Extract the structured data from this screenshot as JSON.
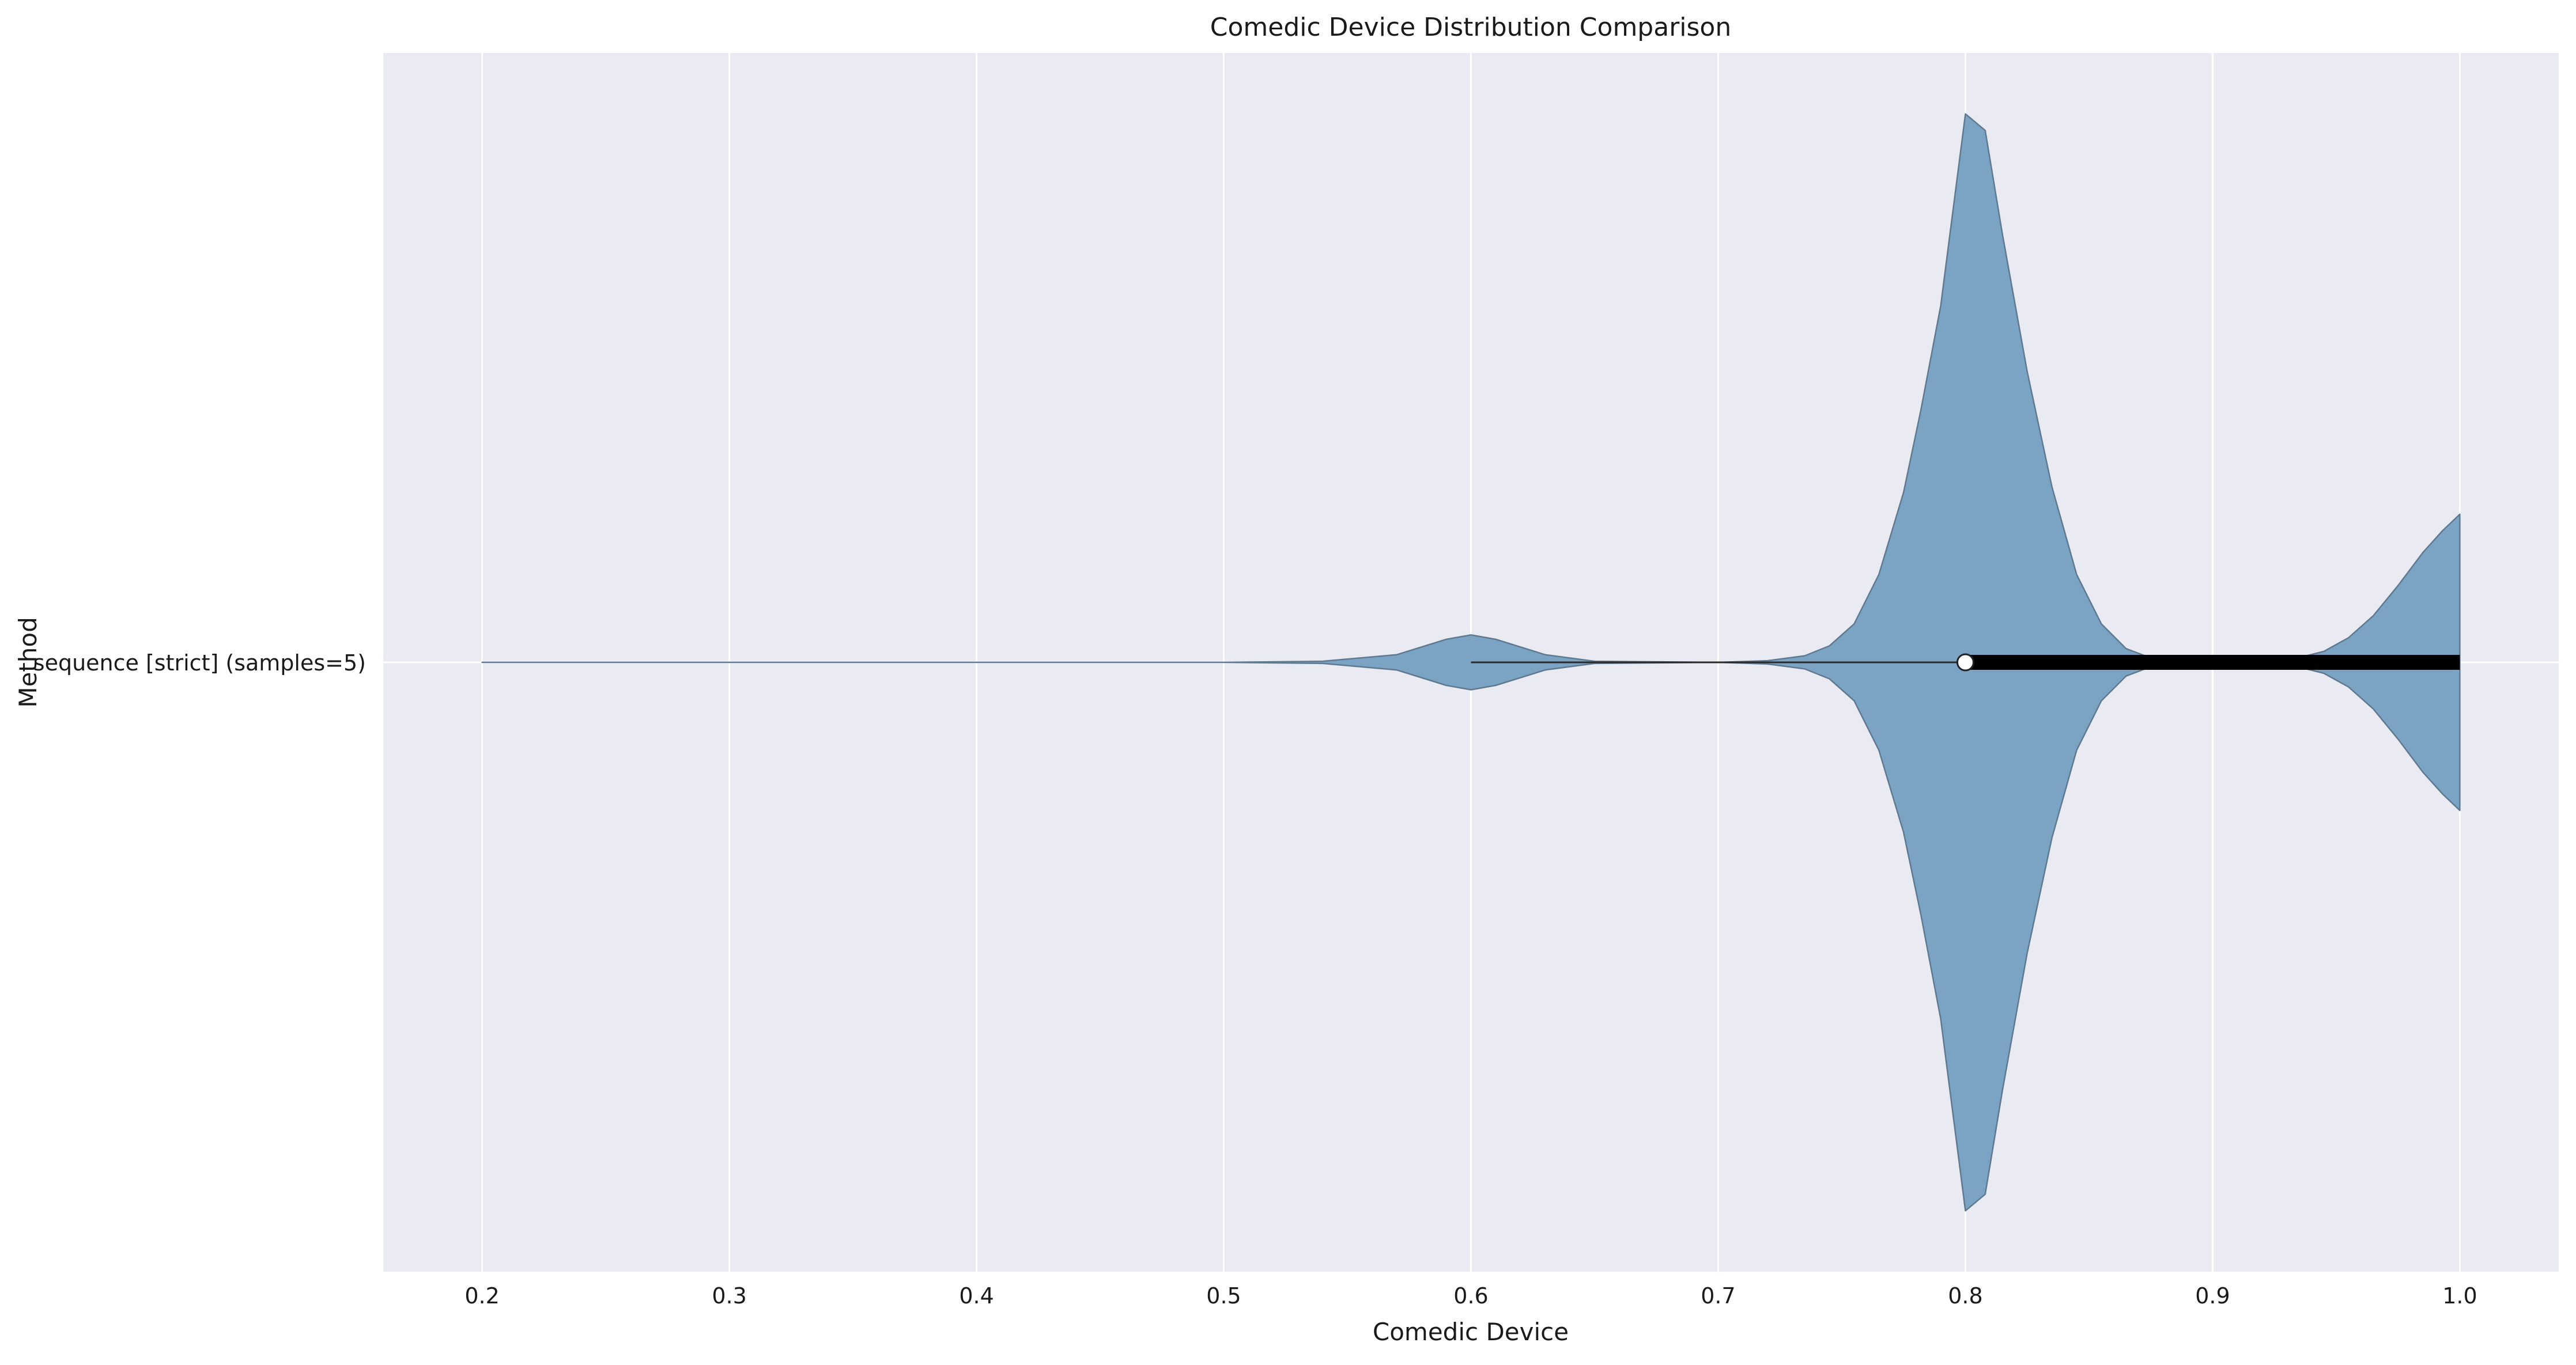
{
  "chart_data": {
    "type": "violin",
    "title": "Comedic Device Distribution Comparison",
    "xlabel": "Comedic Device",
    "ylabel": "Method",
    "xlim": [
      0.16,
      1.04
    ],
    "xticks": [
      0.2,
      0.3,
      0.4,
      0.5,
      0.6,
      0.7,
      0.8,
      0.9,
      1.0
    ],
    "xtick_labels": [
      "0.2",
      "0.3",
      "0.4",
      "0.5",
      "0.6",
      "0.7",
      "0.8",
      "0.9",
      "1.0"
    ],
    "grid": true,
    "colors": {
      "background": "#eaeaf2",
      "grid": "#ffffff",
      "violin_fill": "#7ba3c4",
      "violin_edge": "#5f7a90",
      "box": "#000000",
      "median_marker": "#ffffff"
    },
    "series": [
      {
        "category": "sequence [strict] (samples=5)",
        "samples": [
          0.6,
          0.8,
          0.8,
          1.0,
          1.0
        ],
        "stats": {
          "min": 0.6,
          "q1": 0.8,
          "median": 0.8,
          "q3": 1.0,
          "max": 1.0
        },
        "density_range": [
          0.2,
          1.0
        ],
        "density": [
          [
            0.2,
            0.0
          ],
          [
            0.5,
            0.0
          ],
          [
            0.54,
            0.002
          ],
          [
            0.57,
            0.014
          ],
          [
            0.59,
            0.042
          ],
          [
            0.6,
            0.05
          ],
          [
            0.61,
            0.042
          ],
          [
            0.63,
            0.014
          ],
          [
            0.65,
            0.002
          ],
          [
            0.7,
            0.0
          ],
          [
            0.72,
            0.003
          ],
          [
            0.735,
            0.012
          ],
          [
            0.745,
            0.03
          ],
          [
            0.755,
            0.07
          ],
          [
            0.765,
            0.16
          ],
          [
            0.775,
            0.31
          ],
          [
            0.782,
            0.46
          ],
          [
            0.79,
            0.65
          ],
          [
            0.8,
            1.0
          ],
          [
            0.808,
            0.97
          ],
          [
            0.815,
            0.78
          ],
          [
            0.825,
            0.53
          ],
          [
            0.835,
            0.32
          ],
          [
            0.845,
            0.16
          ],
          [
            0.855,
            0.07
          ],
          [
            0.865,
            0.025
          ],
          [
            0.875,
            0.008
          ],
          [
            0.89,
            0.002
          ],
          [
            0.91,
            0.0
          ],
          [
            0.93,
            0.003
          ],
          [
            0.945,
            0.02
          ],
          [
            0.955,
            0.045
          ],
          [
            0.965,
            0.085
          ],
          [
            0.975,
            0.14
          ],
          [
            0.985,
            0.2
          ],
          [
            0.993,
            0.24
          ],
          [
            1.0,
            0.27
          ]
        ]
      }
    ]
  }
}
